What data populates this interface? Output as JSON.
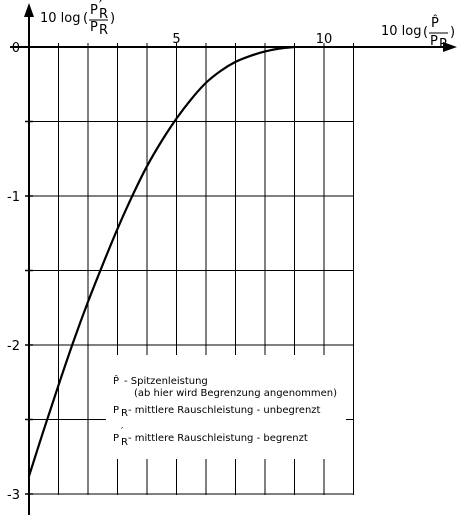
{
  "chart_data": {
    "type": "line",
    "xlabel": {
      "prefix": "10 log",
      "num": "P̂",
      "den": "P",
      "den_sub": "R"
    },
    "ylabel": {
      "prefix": "10 log",
      "num": "P",
      "num_sub": "R",
      "num_prime": "′",
      "den": "P",
      "den_sub": "R"
    },
    "xlim": [
      0,
      11
    ],
    "ylim": [
      -3.1,
      0
    ],
    "x_ticks": [
      0,
      1,
      2,
      3,
      4,
      5,
      6,
      7,
      8,
      9,
      10,
      11
    ],
    "x_tick_labels": [
      {
        "value": 5,
        "label": "5"
      },
      {
        "value": 10,
        "label": "10"
      }
    ],
    "y_ticks": [
      0,
      -0.5,
      -1,
      -1.5,
      -2,
      -2.5,
      -3
    ],
    "y_tick_labels": [
      {
        "value": 0,
        "label": "0"
      },
      {
        "value": -1,
        "label": "-1"
      },
      {
        "value": -2,
        "label": "-2"
      },
      {
        "value": -3,
        "label": "-3"
      }
    ],
    "grid": true,
    "series": [
      {
        "x": [
          0,
          0.5,
          1,
          1.5,
          2,
          2.5,
          3,
          3.5,
          4,
          4.5,
          5,
          5.5,
          6,
          6.5,
          7,
          7.5,
          8,
          8.5,
          9
        ],
        "y": [
          -2.88,
          -2.57,
          -2.27,
          -1.98,
          -1.71,
          -1.46,
          -1.22,
          -1.0,
          -0.8,
          -0.63,
          -0.48,
          -0.35,
          -0.24,
          -0.16,
          -0.1,
          -0.06,
          -0.03,
          -0.01,
          0.0
        ]
      }
    ],
    "legend": {
      "placement": "lower-right",
      "entries": [
        {
          "symbol": "P̂",
          "text": "- Spitzenleistung",
          "note": "(ab hier wird Begrenzung angenommen)"
        },
        {
          "symbol": "P",
          "sub": "R",
          "text": "- mittlere Rauschleistung - unbegrenzt"
        },
        {
          "symbol": "P",
          "sub": "R",
          "prime": "′",
          "text": "- mittlere Rauschleistung - begrenzt"
        }
      ]
    },
    "colors": {
      "line": "#000000",
      "grid": "#000000",
      "background": "#ffffff"
    }
  }
}
